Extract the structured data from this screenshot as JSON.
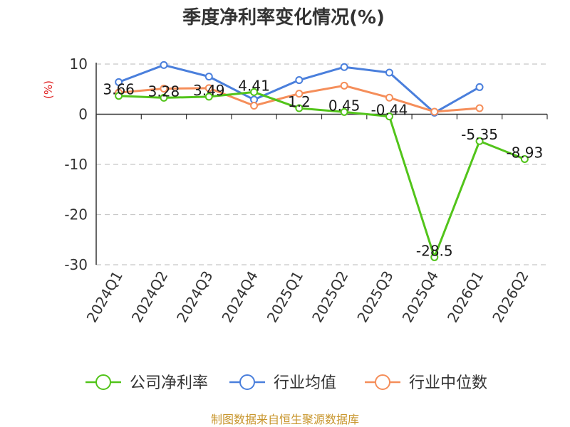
{
  "chart_data": {
    "type": "line",
    "title": "季度净利率变化情况(%)",
    "ylabel": "(%)",
    "ylim": [
      -30,
      10
    ],
    "yticks": [
      10,
      0,
      -10,
      -20,
      -30
    ],
    "categories": [
      "2024Q1",
      "2024Q2",
      "2024Q3",
      "2024Q4",
      "2025Q1",
      "2025Q2",
      "2025Q3",
      "2025Q4",
      "2026Q1",
      "2026Q2"
    ],
    "grid": true,
    "legend_position": "bottom",
    "series": [
      {
        "name": "公司净利率",
        "color": "#52c41a",
        "values": [
          3.66,
          3.28,
          3.49,
          4.41,
          1.2,
          0.45,
          -0.44,
          -28.5,
          -5.35,
          -8.93
        ],
        "labels": [
          "3.66",
          "3.28",
          "3.49",
          "4.41",
          "1.2",
          "0.45",
          "-0.44",
          "-28.5",
          "-5.35",
          "-8.93"
        ]
      },
      {
        "name": "行业均值",
        "color": "#4a7fdc",
        "values": [
          6.4,
          9.8,
          7.5,
          2.9,
          6.8,
          9.4,
          8.3,
          0.3,
          5.4,
          null
        ]
      },
      {
        "name": "行业中位数",
        "color": "#f58e5a",
        "values": [
          4.3,
          5.1,
          5.2,
          1.7,
          4.1,
          5.7,
          3.3,
          0.5,
          1.2,
          null
        ]
      }
    ]
  },
  "source": "制图数据来自恒生聚源数据库"
}
